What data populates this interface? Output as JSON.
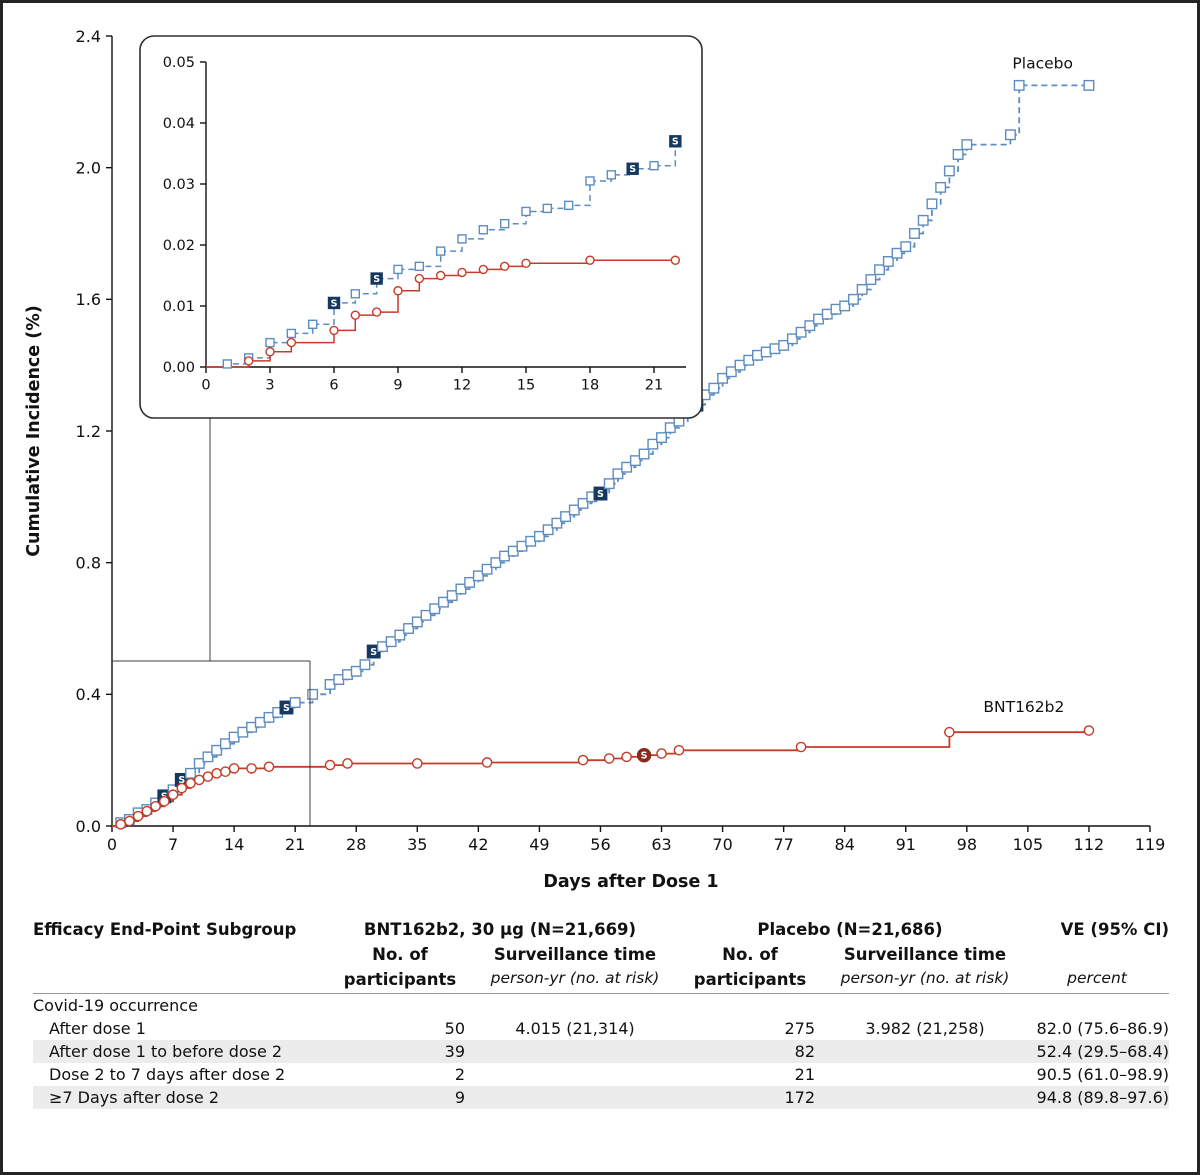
{
  "figure": {
    "x_axis_label": "Days after Dose 1",
    "y_axis_label": "Cumulative Incidence (%)",
    "placebo_label": "Placebo",
    "bnt_label": "BNT162b2"
  },
  "colors": {
    "placebo": "#5d8cc0",
    "bnt": "#c43d28",
    "severe_blue": "#16395f",
    "severe_red": "#8a2a1a"
  },
  "chart_data": [
    {
      "id": "main",
      "type": "line",
      "title": "",
      "xlabel": "Days after Dose 1",
      "ylabel": "Cumulative Incidence (%)",
      "xlim": [
        0,
        119
      ],
      "ylim": [
        0,
        2.4
      ],
      "xticks": [
        0,
        7,
        14,
        21,
        28,
        35,
        42,
        49,
        56,
        63,
        70,
        77,
        84,
        91,
        98,
        105,
        112,
        119
      ],
      "yticks": [
        0.0,
        0.4,
        0.8,
        1.2,
        1.6,
        2.0,
        2.4
      ],
      "ytick_decimals": 1,
      "legend_position": "end-of-line labels",
      "grid": false,
      "series": [
        {
          "name": "Placebo",
          "color": "#5d8cc0",
          "line": "dashed",
          "marker": "square",
          "severe_days": [
            6,
            8,
            20,
            30,
            56,
            67
          ],
          "points": [
            [
              0,
              0
            ],
            [
              1,
              0.01
            ],
            [
              2,
              0.02
            ],
            [
              3,
              0.04
            ],
            [
              4,
              0.05
            ],
            [
              5,
              0.07
            ],
            [
              6,
              0.09
            ],
            [
              7,
              0.11
            ],
            [
              8,
              0.14
            ],
            [
              9,
              0.16
            ],
            [
              10,
              0.19
            ],
            [
              11,
              0.21
            ],
            [
              12,
              0.23
            ],
            [
              13,
              0.25
            ],
            [
              14,
              0.27
            ],
            [
              15,
              0.285
            ],
            [
              16,
              0.3
            ],
            [
              17,
              0.315
            ],
            [
              18,
              0.33
            ],
            [
              19,
              0.345
            ],
            [
              20,
              0.36
            ],
            [
              21,
              0.375
            ],
            [
              23,
              0.4
            ],
            [
              25,
              0.43
            ],
            [
              26,
              0.445
            ],
            [
              27,
              0.46
            ],
            [
              28,
              0.47
            ],
            [
              29,
              0.49
            ],
            [
              30,
              0.53
            ],
            [
              31,
              0.545
            ],
            [
              32,
              0.56
            ],
            [
              33,
              0.58
            ],
            [
              34,
              0.6
            ],
            [
              35,
              0.62
            ],
            [
              36,
              0.64
            ],
            [
              37,
              0.66
            ],
            [
              38,
              0.68
            ],
            [
              39,
              0.7
            ],
            [
              40,
              0.72
            ],
            [
              41,
              0.74
            ],
            [
              42,
              0.76
            ],
            [
              43,
              0.78
            ],
            [
              44,
              0.8
            ],
            [
              45,
              0.82
            ],
            [
              46,
              0.835
            ],
            [
              47,
              0.85
            ],
            [
              48,
              0.865
            ],
            [
              49,
              0.88
            ],
            [
              50,
              0.9
            ],
            [
              51,
              0.92
            ],
            [
              52,
              0.94
            ],
            [
              53,
              0.96
            ],
            [
              54,
              0.98
            ],
            [
              55,
              1.0
            ],
            [
              56,
              1.01
            ],
            [
              57,
              1.04
            ],
            [
              58,
              1.07
            ],
            [
              59,
              1.09
            ],
            [
              60,
              1.11
            ],
            [
              61,
              1.13
            ],
            [
              62,
              1.16
            ],
            [
              63,
              1.18
            ],
            [
              64,
              1.21
            ],
            [
              65,
              1.23
            ],
            [
              66,
              1.26
            ],
            [
              67,
              1.28
            ],
            [
              68,
              1.31
            ],
            [
              69,
              1.33
            ],
            [
              70,
              1.36
            ],
            [
              71,
              1.38
            ],
            [
              72,
              1.4
            ],
            [
              73,
              1.415
            ],
            [
              74,
              1.43
            ],
            [
              75,
              1.44
            ],
            [
              76,
              1.45
            ],
            [
              77,
              1.46
            ],
            [
              78,
              1.48
            ],
            [
              79,
              1.5
            ],
            [
              80,
              1.52
            ],
            [
              81,
              1.54
            ],
            [
              82,
              1.555
            ],
            [
              83,
              1.57
            ],
            [
              84,
              1.58
            ],
            [
              85,
              1.6
            ],
            [
              86,
              1.63
            ],
            [
              87,
              1.66
            ],
            [
              88,
              1.69
            ],
            [
              89,
              1.715
            ],
            [
              90,
              1.74
            ],
            [
              91,
              1.76
            ],
            [
              92,
              1.8
            ],
            [
              93,
              1.84
            ],
            [
              94,
              1.89
            ],
            [
              95,
              1.94
            ],
            [
              96,
              1.99
            ],
            [
              97,
              2.04
            ],
            [
              98,
              2.07
            ],
            [
              103,
              2.1
            ],
            [
              104,
              2.25
            ],
            [
              112,
              2.25
            ]
          ]
        },
        {
          "name": "BNT162b2",
          "color": "#c43d28",
          "line": "solid",
          "marker": "circle",
          "severe_days": [
            61
          ],
          "points": [
            [
              0,
              0
            ],
            [
              1,
              0.005
            ],
            [
              2,
              0.015
            ],
            [
              3,
              0.03
            ],
            [
              4,
              0.045
            ],
            [
              5,
              0.06
            ],
            [
              6,
              0.075
            ],
            [
              7,
              0.095
            ],
            [
              8,
              0.115
            ],
            [
              9,
              0.13
            ],
            [
              10,
              0.14
            ],
            [
              11,
              0.15
            ],
            [
              12,
              0.16
            ],
            [
              13,
              0.165
            ],
            [
              14,
              0.175
            ],
            [
              16,
              0.175
            ],
            [
              18,
              0.18
            ],
            [
              25,
              0.185
            ],
            [
              27,
              0.19
            ],
            [
              35,
              0.19
            ],
            [
              43,
              0.193
            ],
            [
              54,
              0.2
            ],
            [
              57,
              0.205
            ],
            [
              59,
              0.21
            ],
            [
              61,
              0.215
            ],
            [
              63,
              0.22
            ],
            [
              65,
              0.23
            ],
            [
              79,
              0.24
            ],
            [
              96,
              0.285
            ],
            [
              112,
              0.29
            ]
          ]
        }
      ]
    },
    {
      "id": "inset",
      "type": "line",
      "title": "",
      "xlabel": "",
      "ylabel": "",
      "xlim": [
        0,
        22.5
      ],
      "ylim": [
        0,
        0.05
      ],
      "xticks": [
        0,
        3,
        6,
        9,
        12,
        15,
        18,
        21
      ],
      "yticks": [
        0.0,
        0.01,
        0.02,
        0.03,
        0.04,
        0.05
      ],
      "ytick_decimals": 2,
      "grid": false,
      "series": [
        {
          "name": "Placebo",
          "color": "#5d8cc0",
          "line": "dashed",
          "marker": "square",
          "severe_days": [
            6,
            8,
            20,
            22
          ],
          "points": [
            [
              0,
              0
            ],
            [
              1,
              0.0005
            ],
            [
              2,
              0.0015
            ],
            [
              3,
              0.004
            ],
            [
              4,
              0.0055
            ],
            [
              5,
              0.007
            ],
            [
              6,
              0.0105
            ],
            [
              7,
              0.012
            ],
            [
              8,
              0.0145
            ],
            [
              9,
              0.016
            ],
            [
              10,
              0.0165
            ],
            [
              11,
              0.019
            ],
            [
              12,
              0.021
            ],
            [
              13,
              0.0225
            ],
            [
              14,
              0.0235
            ],
            [
              15,
              0.0255
            ],
            [
              16,
              0.026
            ],
            [
              17,
              0.0265
            ],
            [
              18,
              0.0305
            ],
            [
              19,
              0.0315
            ],
            [
              20,
              0.0325
            ],
            [
              21,
              0.033
            ],
            [
              22,
              0.037
            ]
          ]
        },
        {
          "name": "BNT162b2",
          "color": "#c43d28",
          "line": "solid",
          "marker": "circle",
          "severe_days": [],
          "points": [
            [
              0,
              0
            ],
            [
              2,
              0.001
            ],
            [
              3,
              0.0025
            ],
            [
              4,
              0.004
            ],
            [
              6,
              0.006
            ],
            [
              7,
              0.0085
            ],
            [
              8,
              0.009
            ],
            [
              9,
              0.0125
            ],
            [
              10,
              0.0145
            ],
            [
              11,
              0.015
            ],
            [
              12,
              0.0155
            ],
            [
              13,
              0.016
            ],
            [
              14,
              0.0165
            ],
            [
              15,
              0.017
            ],
            [
              18,
              0.0175
            ],
            [
              22,
              0.0175
            ]
          ]
        }
      ]
    }
  ],
  "table": {
    "header": {
      "subgroup": "Efficacy End-Point Subgroup",
      "group1": "BNT162b2, 30 µg (N=21,669)",
      "group2": "Placebo (N=21,686)",
      "ve": "VE (95% CI)",
      "participants": "No. of participants",
      "surveillance": "Surveillance time",
      "surveillance_sub": "person-yr (no. at risk)",
      "ve_sub": "percent"
    },
    "rows": [
      {
        "label": "Covid-19 occurrence",
        "indent": false,
        "bnt_n": "",
        "bnt_surv": "",
        "plc_n": "",
        "plc_surv": "",
        "ve": ""
      },
      {
        "label": "After dose 1",
        "indent": true,
        "bnt_n": "50",
        "bnt_surv": "4.015 (21,314)",
        "plc_n": "275",
        "plc_surv": "3.982 (21,258)",
        "ve": "82.0 (75.6–86.9)"
      },
      {
        "label": "After dose 1 to before dose 2",
        "indent": true,
        "bnt_n": "39",
        "bnt_surv": "",
        "plc_n": "82",
        "plc_surv": "",
        "ve": "52.4 (29.5–68.4)"
      },
      {
        "label": "Dose 2 to 7 days after dose 2",
        "indent": true,
        "bnt_n": "2",
        "bnt_surv": "",
        "plc_n": "21",
        "plc_surv": "",
        "ve": "90.5 (61.0–98.9)"
      },
      {
        "label": "≥7 Days after dose 2",
        "indent": true,
        "bnt_n": "9",
        "bnt_surv": "",
        "plc_n": "172",
        "plc_surv": "",
        "ve": "94.8 (89.8–97.6)"
      }
    ]
  }
}
